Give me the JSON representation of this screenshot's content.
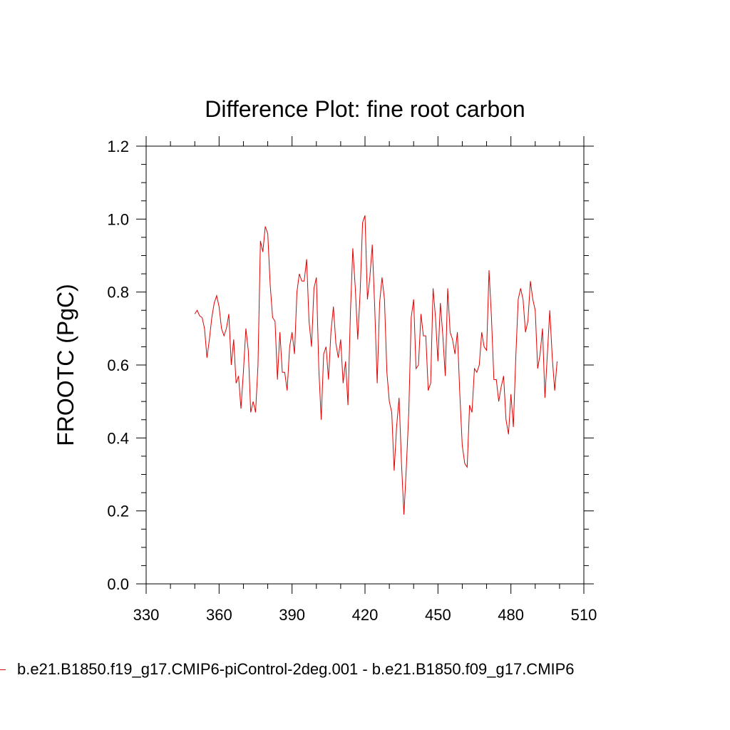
{
  "chart_data": {
    "type": "line",
    "title": "Difference Plot: fine root carbon",
    "xlabel": "",
    "ylabel": "FROOTC  (PgC)",
    "xlim": [
      330,
      510
    ],
    "ylim": [
      0.0,
      1.2
    ],
    "xticks": [
      330,
      360,
      390,
      420,
      450,
      480,
      510
    ],
    "yticks": [
      0.0,
      0.2,
      0.4,
      0.6,
      0.8,
      1.0,
      1.2
    ],
    "ytick_labels": [
      "0.0",
      "0.2",
      "0.4",
      "0.6",
      "0.8",
      "1.0",
      "1.2"
    ],
    "grid": false,
    "legend_position": "bottom",
    "series": [
      {
        "name": "b.e21.B1850.f19_g17.CMIP6-piControl-2deg.001 - b.e21.B1850.f09_g17.CMIP6",
        "color": "#e00000",
        "x": [
          350,
          351,
          352,
          353,
          354,
          355,
          356,
          357,
          358,
          359,
          360,
          361,
          362,
          363,
          364,
          365,
          366,
          367,
          368,
          369,
          370,
          371,
          372,
          373,
          374,
          375,
          376,
          377,
          378,
          379,
          380,
          381,
          382,
          383,
          384,
          385,
          386,
          387,
          388,
          389,
          390,
          391,
          392,
          393,
          394,
          395,
          396,
          397,
          398,
          399,
          400,
          401,
          402,
          403,
          404,
          405,
          406,
          407,
          408,
          409,
          410,
          411,
          412,
          413,
          414,
          415,
          416,
          417,
          418,
          419,
          420,
          421,
          422,
          423,
          424,
          425,
          426,
          427,
          428,
          429,
          430,
          431,
          432,
          433,
          434,
          435,
          436,
          437,
          438,
          439,
          440,
          441,
          442,
          443,
          444,
          445,
          446,
          447,
          448,
          449,
          450,
          451,
          452,
          453,
          454,
          455,
          456,
          457,
          458,
          459,
          460,
          461,
          462,
          463,
          464,
          465,
          466,
          467,
          468,
          469,
          470,
          471,
          472,
          473,
          474,
          475,
          476,
          477,
          478,
          479,
          480,
          481,
          482,
          483,
          484,
          485,
          486,
          487,
          488,
          489,
          490,
          491,
          492,
          493,
          494,
          495,
          496,
          497,
          498,
          499
        ],
        "y": [
          0.74,
          0.75,
          0.735,
          0.73,
          0.7,
          0.62,
          0.67,
          0.73,
          0.77,
          0.79,
          0.76,
          0.7,
          0.68,
          0.7,
          0.74,
          0.6,
          0.67,
          0.55,
          0.57,
          0.48,
          0.58,
          0.7,
          0.64,
          0.47,
          0.5,
          0.47,
          0.6,
          0.94,
          0.91,
          0.98,
          0.96,
          0.82,
          0.73,
          0.72,
          0.56,
          0.69,
          0.58,
          0.58,
          0.53,
          0.65,
          0.69,
          0.63,
          0.8,
          0.85,
          0.83,
          0.83,
          0.89,
          0.72,
          0.65,
          0.81,
          0.84,
          0.59,
          0.45,
          0.63,
          0.65,
          0.56,
          0.69,
          0.76,
          0.66,
          0.62,
          0.67,
          0.55,
          0.61,
          0.49,
          0.74,
          0.92,
          0.81,
          0.67,
          0.8,
          0.99,
          1.01,
          0.78,
          0.84,
          0.93,
          0.76,
          0.55,
          0.77,
          0.84,
          0.78,
          0.58,
          0.5,
          0.47,
          0.31,
          0.43,
          0.51,
          0.33,
          0.19,
          0.32,
          0.47,
          0.73,
          0.78,
          0.59,
          0.6,
          0.74,
          0.68,
          0.68,
          0.53,
          0.55,
          0.81,
          0.73,
          0.61,
          0.77,
          0.68,
          0.57,
          0.81,
          0.69,
          0.67,
          0.63,
          0.69,
          0.52,
          0.38,
          0.33,
          0.32,
          0.49,
          0.47,
          0.59,
          0.58,
          0.6,
          0.69,
          0.65,
          0.64,
          0.86,
          0.73,
          0.56,
          0.56,
          0.5,
          0.54,
          0.57,
          0.45,
          0.41,
          0.52,
          0.43,
          0.62,
          0.78,
          0.81,
          0.78,
          0.69,
          0.72,
          0.83,
          0.78,
          0.75,
          0.59,
          0.63,
          0.7,
          0.51,
          0.63,
          0.75,
          0.62,
          0.53,
          0.61
        ]
      }
    ]
  }
}
